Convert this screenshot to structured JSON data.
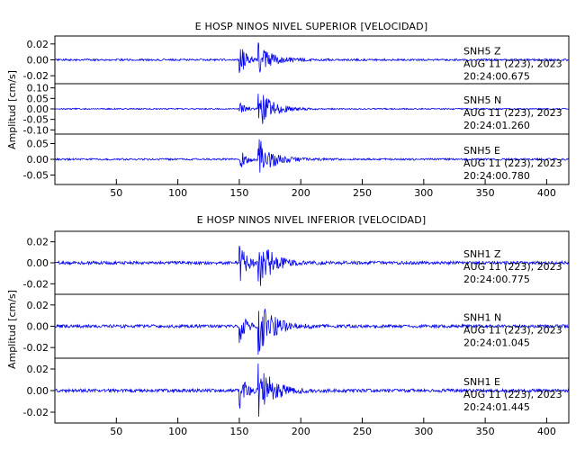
{
  "colors": {
    "trace": "#0000ee",
    "axis": "#000000",
    "background": "#ffffff"
  },
  "chart_data": [
    {
      "type": "line",
      "title": "E HOSP NINOS NIVEL SUPERIOR [VELOCIDAD]",
      "xlabel": "",
      "ylabel": "Amplitud [cm/s]",
      "xlim": [
        0,
        418
      ],
      "xticks": [
        50,
        100,
        150,
        200,
        250,
        300,
        350,
        400
      ],
      "grid": false,
      "traces": [
        {
          "name": "SNH5 Z",
          "station": "SNH5",
          "component": "Z",
          "date": "AUG 11 (223), 2023",
          "time": "20:24:00.675",
          "ylim": [
            -0.03,
            0.03
          ],
          "yticks": [
            0.02,
            0.0,
            -0.02
          ],
          "ytick_labels": [
            "0.02",
            "0.00",
            "-0.02"
          ],
          "noise_amp": 0.0012,
          "event_amps": [
            0.025,
            0.021
          ],
          "onsets": [
            150,
            165
          ]
        },
        {
          "name": "SNH5 N",
          "station": "SNH5",
          "component": "N",
          "date": "AUG 11 (223), 2023",
          "time": "20:24:01.260",
          "ylim": [
            -0.12,
            0.12
          ],
          "yticks": [
            0.1,
            0.05,
            0.0,
            -0.05,
            -0.1
          ],
          "ytick_labels": [
            "0.10",
            "0.05",
            "0.00",
            "-0.05",
            "-0.10"
          ],
          "noise_amp": 0.003,
          "event_amps": [
            0.03,
            0.1
          ],
          "onsets": [
            150,
            165
          ]
        },
        {
          "name": "SNH5 E",
          "station": "SNH5",
          "component": "E",
          "date": "AUG 11 (223), 2023",
          "time": "20:24:00.780",
          "ylim": [
            -0.08,
            0.08
          ],
          "yticks": [
            0.05,
            0.0,
            -0.05
          ],
          "ytick_labels": [
            "0.05",
            "0.00",
            "-0.05"
          ],
          "noise_amp": 0.003,
          "event_amps": [
            0.035,
            0.07
          ],
          "onsets": [
            150,
            165
          ]
        }
      ]
    },
    {
      "type": "line",
      "title": "E HOSP NINOS NIVEL INFERIOR [VELOCIDAD]",
      "xlabel": "",
      "ylabel": "Amplitud [cm/s]",
      "xlim": [
        0,
        418
      ],
      "xticks": [
        50,
        100,
        150,
        200,
        250,
        300,
        350,
        400
      ],
      "grid": false,
      "traces": [
        {
          "name": "SNH1 Z",
          "station": "SNH1",
          "component": "Z",
          "date": "AUG 11 (223), 2023",
          "time": "20:24:00.775",
          "ylim": [
            -0.03,
            0.03
          ],
          "yticks": [
            0.02,
            0.0,
            -0.02
          ],
          "ytick_labels": [
            "0.02",
            "0.00",
            "-0.02"
          ],
          "noise_amp": 0.0015,
          "event_amps": [
            0.02,
            0.025
          ],
          "onsets": [
            150,
            165
          ]
        },
        {
          "name": "SNH1 N",
          "station": "SNH1",
          "component": "N",
          "date": "AUG 11 (223), 2023",
          "time": "20:24:01.045",
          "ylim": [
            -0.03,
            0.03
          ],
          "yticks": [
            0.02,
            0.0,
            -0.02
          ],
          "ytick_labels": [
            "0.02",
            "0.00",
            "-0.02"
          ],
          "noise_amp": 0.0015,
          "event_amps": [
            0.015,
            0.028
          ],
          "onsets": [
            150,
            165
          ]
        },
        {
          "name": "SNH1 E",
          "station": "SNH1",
          "component": "E",
          "date": "AUG 11 (223), 2023",
          "time": "20:24:01.445",
          "ylim": [
            -0.03,
            0.03
          ],
          "yticks": [
            0.02,
            0.0,
            -0.02
          ],
          "ytick_labels": [
            "0.02",
            "0.00",
            "-0.02"
          ],
          "noise_amp": 0.0015,
          "event_amps": [
            0.018,
            0.028
          ],
          "onsets": [
            150,
            165
          ]
        }
      ]
    }
  ]
}
